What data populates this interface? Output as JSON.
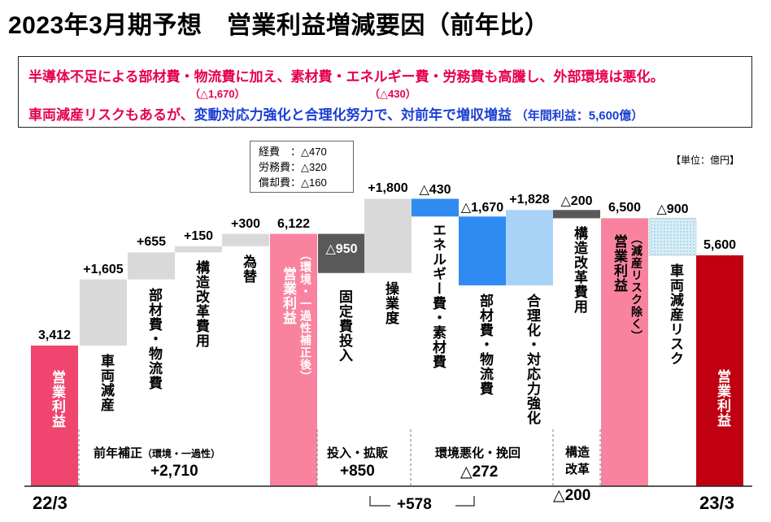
{
  "title": "2023年3月期予想　営業利益増減要因（前年比）",
  "notes": {
    "line1": "半導体不足による部材費・物流費に加え、素材費・エネルギー費・労務費も高騰し、外部環境は悪化。",
    "line1_sub1": "（△1,670）",
    "line1_sub2": "（△430）",
    "line2_red": "車両減産リスクもあるが、",
    "line2_blue": "変動対応力強化と合理化努力で、対前年で増収増益",
    "line2_small": "（年間利益：5,600億）"
  },
  "unit": "【単位：億円】",
  "cost_breakdown": [
    "経費　：△470",
    "労務費：△320",
    "償却費：△160"
  ],
  "colors": {
    "profit": "#f0456f",
    "adjust": "#d9d9d9",
    "invest": "#595959",
    "blue": "#2f8bf0",
    "lightblue": "#a9d2f7",
    "darkred": "#c00010",
    "pink": "#f9839f"
  },
  "chart_data": {
    "type": "waterfall",
    "title": "2023年3月期予想　営業利益増減要因（前年比）",
    "unit": "億円",
    "bars": [
      {
        "label": "営業利益",
        "value_label": "3,412",
        "value": 3412,
        "kind": "total"
      },
      {
        "label": "車両減産",
        "value_label": "+1,605",
        "value": 1605,
        "kind": "increase"
      },
      {
        "label": "部材費・物流費",
        "value_label": "+655",
        "value": 655,
        "kind": "increase"
      },
      {
        "label": "構造改革費用",
        "value_label": "+150",
        "value": 150,
        "kind": "increase"
      },
      {
        "label": "為替",
        "value_label": "+300",
        "value": 300,
        "kind": "increase"
      },
      {
        "label": "営業利益",
        "note": "（環境・一過性補正後）",
        "value_label": "6,122",
        "value": 6122,
        "kind": "subtotal"
      },
      {
        "label": "固定費投入",
        "value_label": "△950",
        "value": -950,
        "kind": "decrease"
      },
      {
        "label": "操業度",
        "value_label": "+1,800",
        "value": 1800,
        "kind": "increase"
      },
      {
        "label": "エネルギー費・素材費",
        "value_label": "△430",
        "value": -430,
        "kind": "decrease"
      },
      {
        "label": "部材費・物流費",
        "value_label": "△1,670",
        "value": -1670,
        "kind": "decrease"
      },
      {
        "label": "合理化・対応力強化",
        "value_label": "+1,828",
        "value": 1828,
        "kind": "increase"
      },
      {
        "label": "構造改革費用",
        "value_label": "△200",
        "value": -200,
        "kind": "decrease"
      },
      {
        "label": "営業利益",
        "note": "（減産リスク除く）",
        "value_label": "6,500",
        "value": 6500,
        "kind": "subtotal"
      },
      {
        "label": "車両減産リスク",
        "value_label": "△900",
        "value": -900,
        "kind": "decrease"
      },
      {
        "label": "営業利益",
        "value_label": "5,600",
        "value": 5600,
        "kind": "total"
      }
    ],
    "groups": [
      {
        "label": "前年補正",
        "sub": "（環境・一過性）",
        "value_label": "+2,710"
      },
      {
        "label": "投入・拡販",
        "value_label": "+850"
      },
      {
        "label": "環境悪化・挽回",
        "value_label": "△272"
      },
      {
        "label": "構造改革",
        "value_label": "△200"
      }
    ],
    "combined_label": "+578",
    "periods": [
      "22/3",
      "23/3"
    ]
  }
}
